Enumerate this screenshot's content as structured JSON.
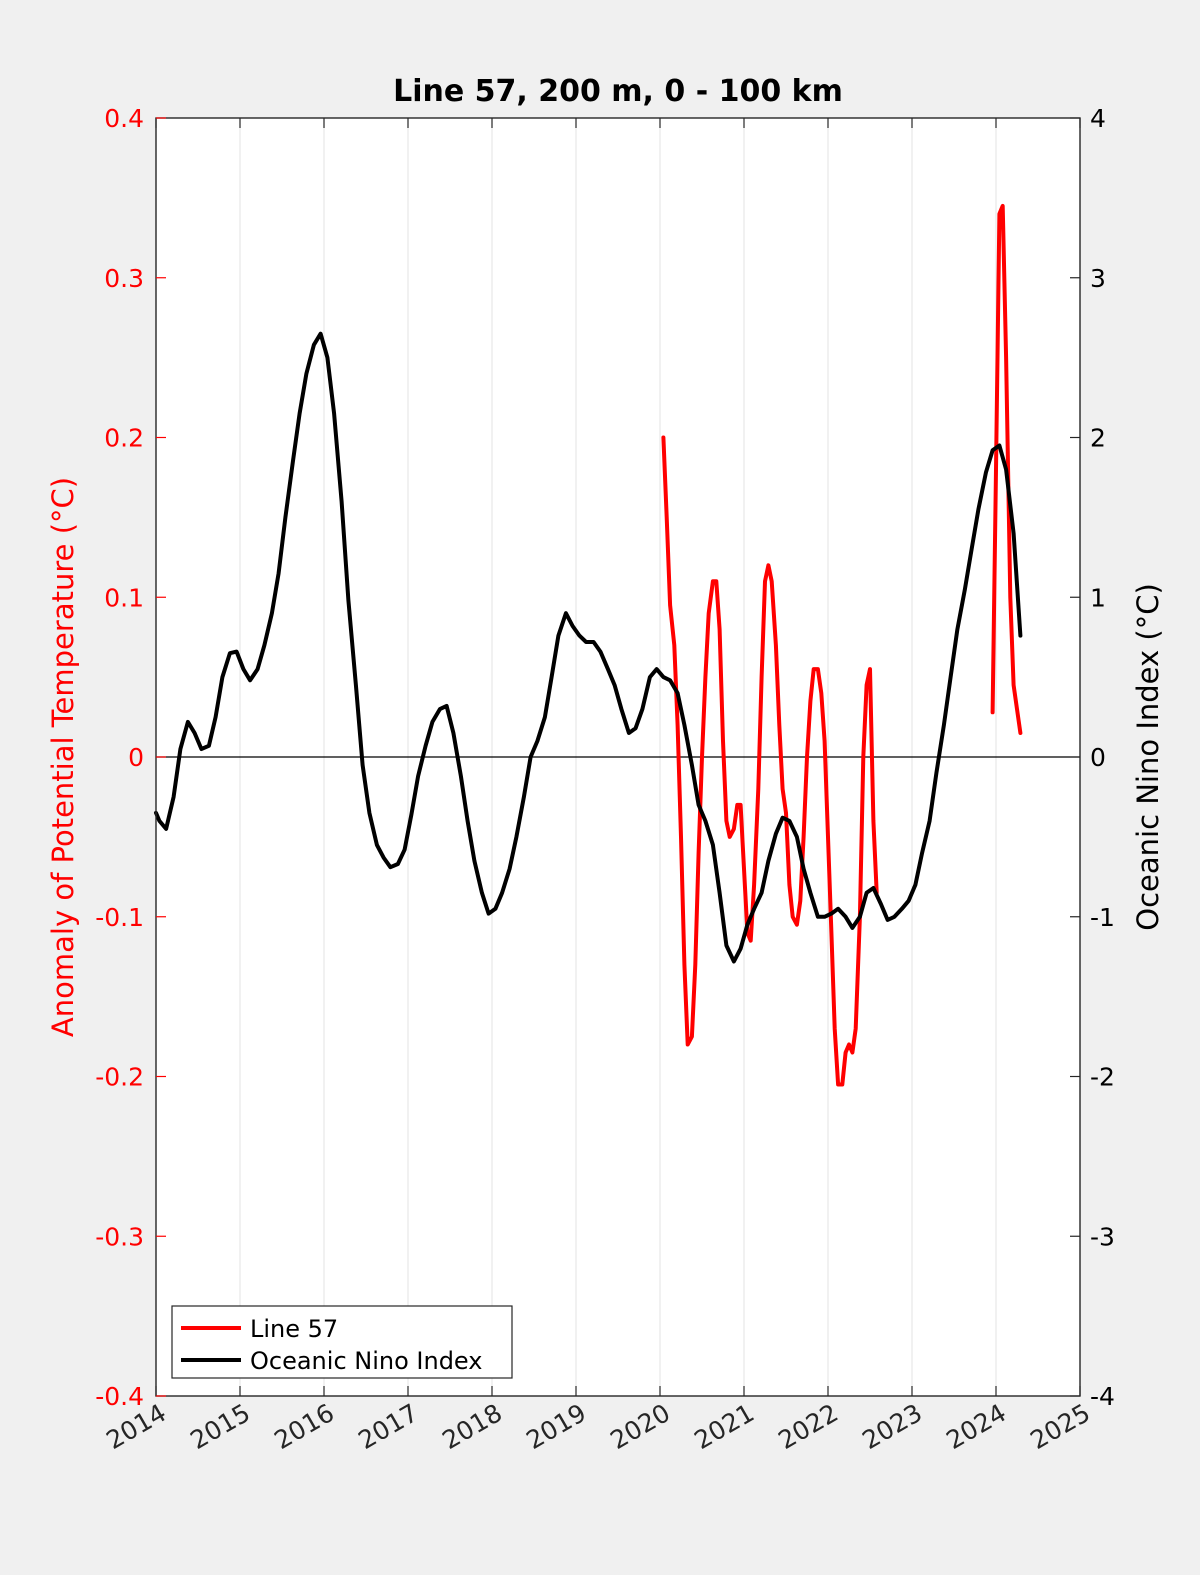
{
  "chart_data": {
    "type": "line",
    "title": "Line 57, 200 m, 0 - 100 km",
    "ylabel_left": "Anomaly of Potential Temperature (°C)",
    "ylabel_right": "Oceanic Nino Index (°C)",
    "xlabel": "",
    "xlim": [
      2014,
      2025
    ],
    "ylim_left": [
      -0.4,
      0.4
    ],
    "ylim_right": [
      -4,
      4
    ],
    "x_ticks": [
      "2014",
      "2015",
      "2016",
      "2017",
      "2018",
      "2019",
      "2020",
      "2021",
      "2022",
      "2023",
      "2024",
      "2025"
    ],
    "y_ticks_left": [
      "-0.4",
      "-0.3",
      "-0.2",
      "-0.1",
      "0",
      "0.1",
      "0.2",
      "0.3",
      "0.4"
    ],
    "y_ticks_right": [
      "-4",
      "-3",
      "-2",
      "-1",
      "0",
      "1",
      "2",
      "3",
      "4"
    ],
    "grid": "vertical",
    "zero_line": true,
    "legend_position": "bottom-left",
    "colors": {
      "line57": "#ff0000",
      "oni": "#000000",
      "left_axis": "#ff0000",
      "right_axis": "#000000"
    },
    "series": [
      {
        "name": "Line 57",
        "axis": "left",
        "color": "#ff0000",
        "x": [
          2020.04,
          2020.08,
          2020.12,
          2020.17,
          2020.21,
          2020.25,
          2020.29,
          2020.33,
          2020.38,
          2020.42,
          2020.46,
          2020.5,
          2020.54,
          2020.58,
          2020.63,
          2020.67,
          2020.71,
          2020.75,
          2020.79,
          2020.83,
          2020.88,
          2020.92,
          2020.96,
          2021.0,
          2021.04,
          2021.08,
          2021.12,
          2021.17,
          2021.21,
          2021.25,
          2021.29,
          2021.33,
          2021.38,
          2021.42,
          2021.46,
          2021.5,
          2021.54,
          2021.58,
          2021.63,
          2021.67,
          2021.71,
          2021.75,
          2021.79,
          2021.83,
          2021.88,
          2021.92,
          2021.96,
          2022.0,
          2022.04,
          2022.08,
          2022.12,
          2022.17,
          2022.21,
          2022.25,
          2022.29,
          2022.33,
          2022.38,
          2022.42,
          2022.46,
          2022.5,
          2022.54,
          2022.58,
          2022.63,
          2022.67,
          2022.71,
          2022.75,
          2022.79,
          2022.83,
          2022.88,
          2022.92,
          2022.96,
          2023.0,
          2023.04,
          null,
          2023.96,
          2024.0,
          2024.04,
          2024.08,
          2024.12,
          2024.17,
          2024.21,
          2024.25,
          2024.29
        ],
        "values": [
          0.2,
          0.15,
          0.095,
          0.07,
          0.02,
          -0.05,
          -0.13,
          -0.18,
          -0.175,
          -0.13,
          -0.06,
          0.0,
          0.05,
          0.09,
          0.11,
          0.11,
          0.08,
          0.01,
          -0.04,
          -0.05,
          -0.045,
          -0.03,
          -0.03,
          -0.07,
          -0.11,
          -0.115,
          -0.08,
          -0.02,
          0.05,
          0.11,
          0.12,
          0.11,
          0.07,
          0.02,
          -0.02,
          -0.035,
          -0.08,
          -0.1,
          -0.105,
          -0.09,
          -0.05,
          0.0,
          0.035,
          0.055,
          0.055,
          0.04,
          0.01,
          -0.05,
          -0.11,
          -0.17,
          -0.205,
          -0.205,
          -0.185,
          -0.18,
          -0.185,
          -0.17,
          -0.1,
          0.0,
          0.045,
          0.055,
          -0.04,
          -0.085,
          null,
          null,
          null,
          null,
          null,
          null,
          null,
          null,
          null,
          null,
          null,
          null,
          0.028,
          0.18,
          0.34,
          0.345,
          0.25,
          0.1,
          0.045,
          0.03,
          0.015
        ]
      },
      {
        "name": "Oceanic Nino Index",
        "axis": "right",
        "color": "#000000",
        "x": [
          2014.0,
          2014.04,
          2014.12,
          2014.21,
          2014.29,
          2014.38,
          2014.46,
          2014.54,
          2014.63,
          2014.71,
          2014.79,
          2014.88,
          2014.96,
          2015.04,
          2015.12,
          2015.21,
          2015.29,
          2015.38,
          2015.46,
          2015.54,
          2015.63,
          2015.71,
          2015.79,
          2015.88,
          2015.96,
          2016.04,
          2016.12,
          2016.21,
          2016.29,
          2016.38,
          2016.46,
          2016.54,
          2016.63,
          2016.71,
          2016.79,
          2016.88,
          2016.96,
          2017.04,
          2017.12,
          2017.21,
          2017.29,
          2017.38,
          2017.46,
          2017.54,
          2017.63,
          2017.71,
          2017.79,
          2017.88,
          2017.96,
          2018.04,
          2018.12,
          2018.21,
          2018.29,
          2018.38,
          2018.46,
          2018.54,
          2018.63,
          2018.71,
          2018.79,
          2018.88,
          2018.96,
          2019.04,
          2019.12,
          2019.21,
          2019.29,
          2019.38,
          2019.46,
          2019.54,
          2019.63,
          2019.71,
          2019.79,
          2019.88,
          2019.96,
          2020.04,
          2020.12,
          2020.21,
          2020.29,
          2020.38,
          2020.46,
          2020.54,
          2020.63,
          2020.71,
          2020.79,
          2020.88,
          2020.96,
          2021.04,
          2021.12,
          2021.21,
          2021.29,
          2021.38,
          2021.46,
          2021.54,
          2021.63,
          2021.71,
          2021.79,
          2021.88,
          2021.96,
          2022.04,
          2022.12,
          2022.21,
          2022.29,
          2022.38,
          2022.46,
          2022.54,
          2022.63,
          2022.71,
          2022.79,
          2022.88,
          2022.96,
          2023.04,
          2023.12,
          2023.21,
          2023.29,
          2023.38,
          2023.46,
          2023.54,
          2023.63,
          2023.71,
          2023.79,
          2023.88,
          2023.96,
          2024.04,
          2024.12,
          2024.21,
          2024.29
        ],
        "values": [
          -0.35,
          -0.4,
          -0.45,
          -0.25,
          0.05,
          0.22,
          0.15,
          0.05,
          0.07,
          0.25,
          0.5,
          0.65,
          0.66,
          0.55,
          0.48,
          0.55,
          0.7,
          0.9,
          1.15,
          1.5,
          1.85,
          2.15,
          2.4,
          2.58,
          2.65,
          2.5,
          2.15,
          1.6,
          0.98,
          0.45,
          -0.05,
          -0.35,
          -0.55,
          -0.63,
          -0.69,
          -0.67,
          -0.58,
          -0.36,
          -0.12,
          0.07,
          0.22,
          0.3,
          0.32,
          0.15,
          -0.12,
          -0.4,
          -0.65,
          -0.85,
          -0.98,
          -0.95,
          -0.85,
          -0.7,
          -0.5,
          -0.25,
          0.0,
          0.1,
          0.25,
          0.5,
          0.76,
          0.9,
          0.82,
          0.76,
          0.72,
          0.72,
          0.66,
          0.55,
          0.45,
          0.3,
          0.15,
          0.18,
          0.3,
          0.5,
          0.55,
          0.5,
          0.48,
          0.4,
          0.2,
          -0.05,
          -0.3,
          -0.4,
          -0.55,
          -0.85,
          -1.18,
          -1.28,
          -1.2,
          -1.05,
          -0.95,
          -0.85,
          -0.65,
          -0.48,
          -0.38,
          -0.4,
          -0.5,
          -0.7,
          -0.85,
          -1.0,
          -1.0,
          -0.98,
          -0.95,
          -1.0,
          -1.07,
          -1.0,
          -0.85,
          -0.82,
          -0.92,
          -1.02,
          -1.0,
          -0.95,
          -0.9,
          -0.8,
          -0.6,
          -0.4,
          -0.1,
          0.2,
          0.5,
          0.8,
          1.05,
          1.3,
          1.55,
          1.78,
          1.92,
          1.95,
          1.8,
          1.4,
          0.76
        ]
      }
    ]
  }
}
